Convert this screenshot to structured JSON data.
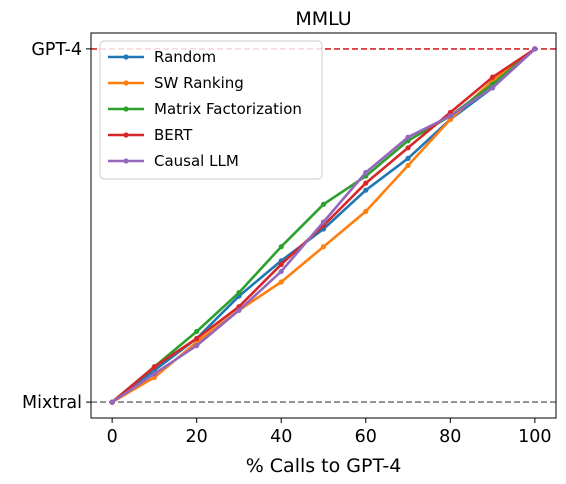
{
  "chart_data": {
    "type": "line",
    "title": "MMLU",
    "xlabel": "% Calls to GPT-4",
    "ylabel": "",
    "xlim": [
      -5,
      105
    ],
    "ylim": [
      -0.045,
      1.045
    ],
    "xticks": [
      0,
      20,
      40,
      60,
      80,
      100
    ],
    "yticks": [
      {
        "value": 0,
        "label": "Mixtral"
      },
      {
        "value": 1,
        "label": "GPT-4"
      }
    ],
    "reference_lines": [
      {
        "value": 1,
        "color": "#d62728",
        "style": "dashed"
      },
      {
        "value": 0,
        "color": "#7f7f7f",
        "style": "dashed"
      }
    ],
    "legend_position": "top-left",
    "x": [
      0,
      10,
      20,
      30,
      40,
      50,
      60,
      70,
      80,
      90,
      100
    ],
    "series": [
      {
        "name": "Random",
        "color": "#1f77b4",
        "values": [
          0,
          0.09,
          0.18,
          0.3,
          0.4,
          0.49,
          0.6,
          0.69,
          0.8,
          0.89,
          1.0
        ]
      },
      {
        "name": "SW Ranking",
        "color": "#ff7f0e",
        "values": [
          0,
          0.07,
          0.17,
          0.26,
          0.34,
          0.44,
          0.54,
          0.67,
          0.8,
          0.91,
          1.0
        ]
      },
      {
        "name": "Matrix Factorization",
        "color": "#2ca02c",
        "values": [
          0,
          0.1,
          0.2,
          0.31,
          0.44,
          0.56,
          0.64,
          0.74,
          0.81,
          0.9,
          1.0
        ]
      },
      {
        "name": "BERT",
        "color": "#d62728",
        "values": [
          0,
          0.1,
          0.18,
          0.27,
          0.39,
          0.5,
          0.62,
          0.72,
          0.82,
          0.92,
          1.0
        ]
      },
      {
        "name": "Causal LLM",
        "color": "#9467bd",
        "values": [
          0,
          0.08,
          0.16,
          0.26,
          0.37,
          0.51,
          0.65,
          0.75,
          0.81,
          0.89,
          1.0
        ]
      }
    ]
  }
}
